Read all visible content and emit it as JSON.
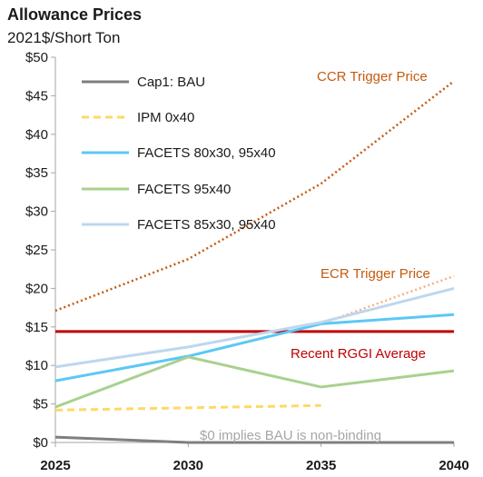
{
  "header": {
    "title": "Allowance Prices",
    "subtitle": "2021$/Short Ton"
  },
  "chart_data": {
    "type": "line",
    "title": "Allowance Prices",
    "subtitle": "2021$/Short Ton",
    "xlabel": "",
    "ylabel": "",
    "x_ticks": [
      2025,
      2030,
      2035,
      2040
    ],
    "x_tick_labels": [
      "2025",
      "2030",
      "2035",
      "2040"
    ],
    "y_ticks": [
      0,
      5,
      10,
      15,
      20,
      25,
      30,
      35,
      40,
      45,
      50
    ],
    "y_tick_labels": [
      "$0",
      "$5",
      "$10",
      "$15",
      "$20",
      "$25",
      "$30",
      "$35",
      "$40",
      "$45",
      "$50"
    ],
    "xlim": [
      2025,
      2040
    ],
    "ylim": [
      0,
      50
    ],
    "grid": false,
    "legend_position": "top-left",
    "series": [
      {
        "name": "Cap1: BAU",
        "color": "#7f7f7f",
        "style": "solid",
        "x": [
          2025,
          2030,
          2035,
          2040
        ],
        "y": [
          0.7,
          0,
          0,
          0
        ]
      },
      {
        "name": "IPM 0x40",
        "color": "#ffd966",
        "style": "dashed",
        "x": [
          2025,
          2030,
          2035
        ],
        "y": [
          4.2,
          4.5,
          4.8
        ]
      },
      {
        "name": "FACETS 80x30, 95x40",
        "color": "#5bc8f5",
        "style": "solid",
        "x": [
          2025,
          2030,
          2035,
          2040
        ],
        "y": [
          8.0,
          11.2,
          15.4,
          16.6
        ]
      },
      {
        "name": "FACETS 95x40",
        "color": "#a9d18e",
        "style": "solid",
        "x": [
          2025,
          2030,
          2035,
          2040
        ],
        "y": [
          4.6,
          11.1,
          7.2,
          9.3
        ]
      },
      {
        "name": "FACETS 85x30, 95x40",
        "color": "#bdd7ee",
        "style": "solid",
        "x": [
          2025,
          2030,
          2035,
          2040
        ],
        "y": [
          9.8,
          12.4,
          15.6,
          20.0
        ]
      }
    ],
    "reference_lines": [
      {
        "label": "CCR Trigger Price",
        "color": "#c55a11",
        "style": "dotted",
        "x": [
          2025,
          2030,
          2035,
          2040
        ],
        "y": [
          17.1,
          23.8,
          33.6,
          46.9
        ]
      },
      {
        "label": "ECR Trigger Price",
        "color": "#f4b183",
        "style": "dotted",
        "x": [
          2035,
          2040
        ],
        "y": [
          15.4,
          21.6
        ]
      },
      {
        "label": "Recent RGGI Average",
        "color": "#c00000",
        "style": "solid",
        "x": [
          2025,
          2040
        ],
        "y": [
          14.4,
          14.4
        ]
      }
    ],
    "annotations": [
      {
        "text": "CCR Trigger Price",
        "color": "#c55a11"
      },
      {
        "text": "ECR Trigger Price",
        "color": "#c55a11"
      },
      {
        "text": "Recent RGGI Average",
        "color": "#c00000"
      },
      {
        "text": "$0 implies BAU is non-binding",
        "color": "#a6a6a6"
      }
    ]
  }
}
